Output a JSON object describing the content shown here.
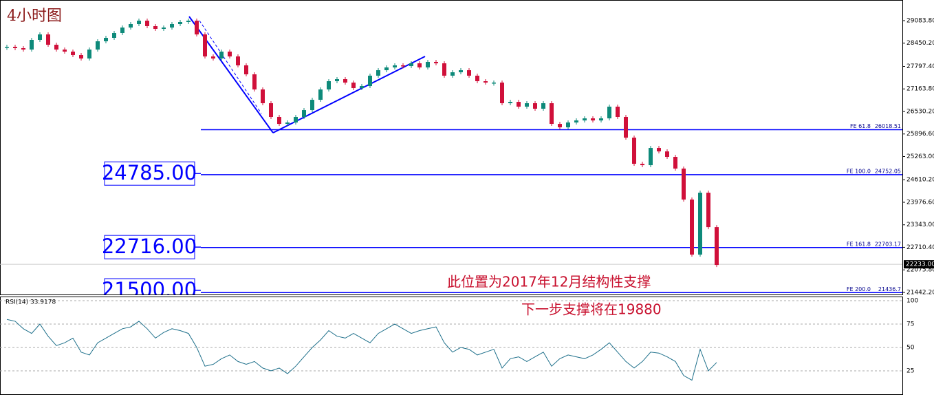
{
  "chart_data": [
    {
      "type": "candlestick",
      "title": "4小时图",
      "annotations": [
        "此位置为2017年12月结构性支撑",
        "下一步支撑将在19880"
      ],
      "up_color": "#0e8a7a",
      "down_color": "#d0103a",
      "closes": [
        28348,
        28310,
        28271,
        28542,
        28696,
        28406,
        28271,
        28213,
        28116,
        28019,
        28271,
        28503,
        28600,
        28735,
        28890,
        28987,
        29083,
        28929,
        28851,
        28890,
        28987,
        29045,
        29083,
        28696,
        28077,
        28019,
        28213,
        28077,
        27826,
        27574,
        27149,
        26762,
        26375,
        26181,
        26220,
        26375,
        26568,
        26858,
        27149,
        27381,
        27439,
        27342,
        27187,
        27245,
        27536,
        27690,
        27768,
        27826,
        27806,
        27884,
        27768,
        27923,
        27884,
        27536,
        27632,
        27690,
        27536,
        27381,
        27342,
        27342,
        26762,
        26800,
        26665,
        26762,
        26607,
        26762,
        26181,
        26084,
        26220,
        26278,
        26336,
        26278,
        26336,
        26665,
        26375,
        25794,
        25059,
        25020,
        25504,
        25407,
        25253,
        24924,
        24053,
        22505,
        24246,
        23278,
        22214
      ],
      "ylim": [
        21384,
        29664
      ],
      "yticks": [
        {
          "value": 29083.8,
          "label": "29083.80"
        },
        {
          "value": 28450.2,
          "label": "28450.20"
        },
        {
          "value": 27797.4,
          "label": "27797.40"
        },
        {
          "value": 27163.8,
          "label": "27163.80"
        },
        {
          "value": 26530.2,
          "label": "26530.20"
        },
        {
          "value": 25896.6,
          "label": "25896.60"
        },
        {
          "value": 25263,
          "label": "25263.00"
        },
        {
          "value": 24610.2,
          "label": "24610.20"
        },
        {
          "value": 23976.6,
          "label": "23976.60"
        },
        {
          "value": 23343,
          "label": "23343.00"
        },
        {
          "value": 22710.4,
          "label": "22710.40"
        },
        {
          "value": 22075.8,
          "label": "22075.80"
        },
        {
          "value": 21442.2,
          "label": "21442.20"
        }
      ],
      "current_price": {
        "value": 22233,
        "label": "22233.00"
      },
      "fe_levels": [
        {
          "name": "FE 61.8",
          "value": 26018.51
        },
        {
          "name": "FE 100.0",
          "value": 24752.05
        },
        {
          "name": "FE 161.8",
          "value": 22703.17
        },
        {
          "name": "FE 200.0",
          "value": 21436.7
        }
      ],
      "level_boxes": [
        {
          "value": 24785,
          "label": "24785.00"
        },
        {
          "value": 22716,
          "label": "22716.00"
        },
        {
          "value": 21500,
          "label": "21500.00"
        }
      ],
      "level_color": "#0000ff"
    },
    {
      "type": "line",
      "title": "RSI(14) 33.9178",
      "color": "#1d6f8a",
      "values": [
        80,
        78,
        70,
        65,
        75,
        62,
        52,
        55,
        60,
        45,
        42,
        55,
        60,
        65,
        70,
        72,
        78,
        70,
        60,
        66,
        70,
        68,
        65,
        50,
        30,
        32,
        38,
        42,
        35,
        32,
        35,
        28,
        25,
        28,
        22,
        30,
        40,
        50,
        58,
        68,
        62,
        60,
        65,
        60,
        55,
        65,
        70,
        75,
        70,
        65,
        68,
        70,
        72,
        55,
        45,
        50,
        48,
        42,
        45,
        48,
        28,
        38,
        40,
        35,
        40,
        45,
        30,
        38,
        42,
        40,
        38,
        42,
        48,
        55,
        45,
        35,
        28,
        35,
        45,
        44,
        40,
        35,
        20,
        15,
        48,
        25,
        34
      ],
      "ylim": [
        0,
        100
      ],
      "yticks": [
        100,
        75,
        50,
        25
      ]
    }
  ]
}
